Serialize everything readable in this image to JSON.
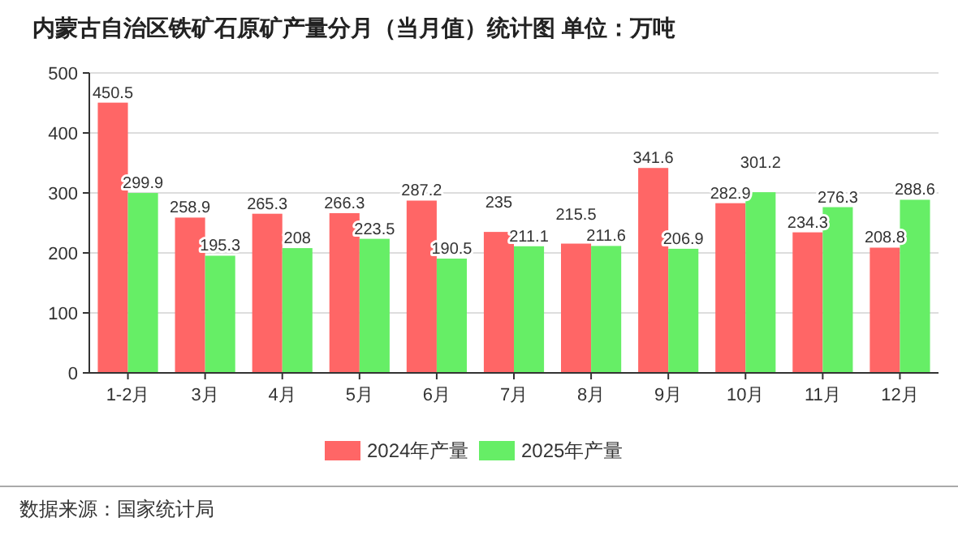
{
  "chart_data": {
    "type": "bar",
    "title": "内蒙古自治区铁矿石原矿产量分月（当月值）统计图  单位：万吨",
    "categories": [
      "1-2月",
      "3月",
      "4月",
      "5月",
      "6月",
      "7月",
      "8月",
      "9月",
      "10月",
      "11月",
      "12月"
    ],
    "series": [
      {
        "name": "2024年产量",
        "color": "#ff6666",
        "values": [
          450.5,
          258.9,
          265.3,
          266.3,
          287.2,
          235,
          215.5,
          341.6,
          282.9,
          234.3,
          208.8
        ]
      },
      {
        "name": "2025年产量",
        "color": "#66ee66",
        "values": [
          299.9,
          195.3,
          208,
          223.5,
          190.5,
          211.1,
          211.6,
          206.9,
          301.2,
          276.3,
          288.6
        ]
      }
    ],
    "ylim": [
      0,
      500
    ],
    "yticks": [
      0,
      100,
      200,
      300,
      400,
      500
    ],
    "grid": "y",
    "legend": "bottom",
    "data_labels": true,
    "annotations": [
      "数据来源：国家统计局"
    ]
  }
}
